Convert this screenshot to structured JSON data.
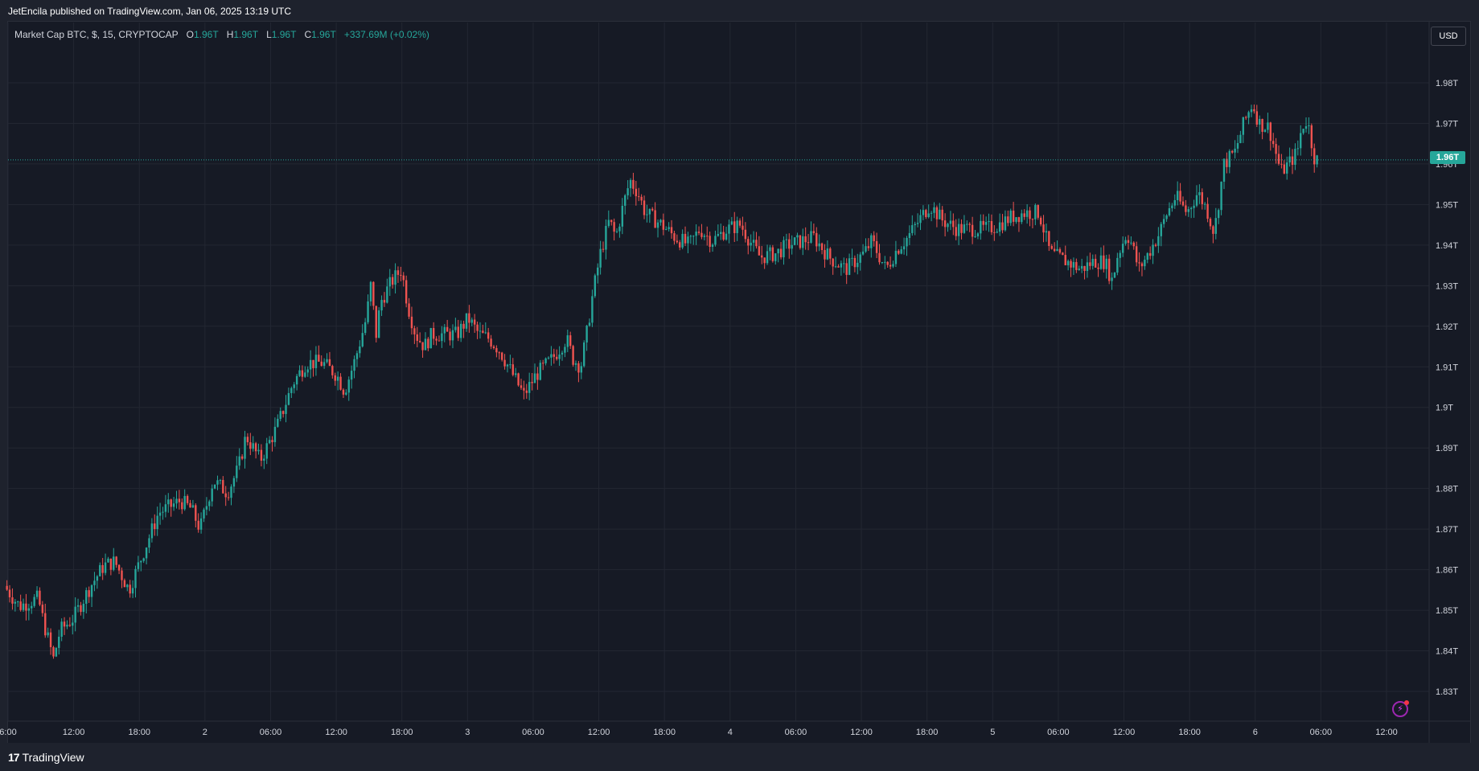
{
  "header": {
    "publish_text": "JetEncila published on TradingView.com, Jan 06, 2025 13:19 UTC"
  },
  "legend": {
    "symbol": "Market Cap BTC, $, 15, CRYPTOCAP",
    "o_label": "O",
    "o_value": "1.96T",
    "h_label": "H",
    "h_value": "1.96T",
    "l_label": "L",
    "l_value": "1.96T",
    "c_label": "C",
    "c_value": "1.96T",
    "change": "+337.69M (+0.02%)"
  },
  "currency_button": "USD",
  "last_price_label": "1.96T",
  "footer": {
    "logo_mark": "17",
    "logo_text": "TradingView"
  },
  "colors": {
    "up": "#26a69a",
    "down": "#ef5350",
    "background": "#161a25",
    "grid": "#232732",
    "accent": "#9c27b0"
  },
  "icons": [
    "tradingview-logo-icon",
    "lightning-icon"
  ],
  "chart_data": {
    "type": "candlestick",
    "timeframe": "15",
    "title": "",
    "y_axis": {
      "unit": "T",
      "range": [
        1.825,
        1.985
      ],
      "ticks": [
        {
          "value": 1.98,
          "label": "1.98T"
        },
        {
          "value": 1.97,
          "label": "1.97T"
        },
        {
          "value": 1.96,
          "label": "1.96T"
        },
        {
          "value": 1.95,
          "label": "1.95T"
        },
        {
          "value": 1.94,
          "label": "1.94T"
        },
        {
          "value": 1.93,
          "label": "1.93T"
        },
        {
          "value": 1.92,
          "label": "1.92T"
        },
        {
          "value": 1.91,
          "label": "1.91T"
        },
        {
          "value": 1.9,
          "label": "1.9T"
        },
        {
          "value": 1.89,
          "label": "1.89T"
        },
        {
          "value": 1.88,
          "label": "1.88T"
        },
        {
          "value": 1.87,
          "label": "1.87T"
        },
        {
          "value": 1.86,
          "label": "1.86T"
        },
        {
          "value": 1.85,
          "label": "1.85T"
        },
        {
          "value": 1.84,
          "label": "1.84T"
        },
        {
          "value": 1.83,
          "label": "1.83T"
        }
      ]
    },
    "x_axis": {
      "ticks": [
        {
          "label": "6:00",
          "hour": 6
        },
        {
          "label": "12:00",
          "hour": 12
        },
        {
          "label": "18:00",
          "hour": 18
        },
        {
          "label": "2",
          "hour": 24
        },
        {
          "label": "06:00",
          "hour": 30
        },
        {
          "label": "12:00",
          "hour": 36
        },
        {
          "label": "18:00",
          "hour": 42
        },
        {
          "label": "3",
          "hour": 48
        },
        {
          "label": "06:00",
          "hour": 54
        },
        {
          "label": "12:00",
          "hour": 60
        },
        {
          "label": "18:00",
          "hour": 66
        },
        {
          "label": "4",
          "hour": 72
        },
        {
          "label": "06:00",
          "hour": 78
        },
        {
          "label": "12:00",
          "hour": 84
        },
        {
          "label": "18:00",
          "hour": 90
        },
        {
          "label": "5",
          "hour": 96
        },
        {
          "label": "06:00",
          "hour": 102
        },
        {
          "label": "12:00",
          "hour": 108
        },
        {
          "label": "18:00",
          "hour": 114
        },
        {
          "label": "6",
          "hour": 120
        },
        {
          "label": "06:00",
          "hour": 126
        },
        {
          "label": "12:00",
          "hour": 132
        }
      ]
    },
    "last_price": 1.961,
    "grid": true,
    "price_path": [
      [
        5.9,
        1.856
      ],
      [
        7.3,
        1.851
      ],
      [
        9.0,
        1.853
      ],
      [
        9.5,
        1.847
      ],
      [
        9.9,
        1.843
      ],
      [
        10.4,
        1.838
      ],
      [
        11.0,
        1.845
      ],
      [
        12.2,
        1.848
      ],
      [
        13.8,
        1.856
      ],
      [
        15.0,
        1.861
      ],
      [
        16.0,
        1.862
      ],
      [
        17.3,
        1.855
      ],
      [
        18.3,
        1.862
      ],
      [
        20.0,
        1.874
      ],
      [
        22.0,
        1.877
      ],
      [
        23.0,
        1.875
      ],
      [
        23.8,
        1.87
      ],
      [
        25.0,
        1.882
      ],
      [
        26.3,
        1.879
      ],
      [
        27.3,
        1.885
      ],
      [
        28.0,
        1.893
      ],
      [
        29.3,
        1.887
      ],
      [
        30.8,
        1.895
      ],
      [
        32.3,
        1.906
      ],
      [
        33.5,
        1.911
      ],
      [
        35.0,
        1.911
      ],
      [
        36.3,
        1.908
      ],
      [
        37.0,
        1.904
      ],
      [
        38.0,
        1.912
      ],
      [
        39.0,
        1.922
      ],
      [
        39.4,
        1.93
      ],
      [
        39.9,
        1.918
      ],
      [
        40.3,
        1.926
      ],
      [
        41.3,
        1.931
      ],
      [
        42.2,
        1.934
      ],
      [
        42.8,
        1.925
      ],
      [
        43.5,
        1.918
      ],
      [
        44.3,
        1.915
      ],
      [
        45.0,
        1.918
      ],
      [
        46.3,
        1.918
      ],
      [
        47.3,
        1.918
      ],
      [
        48.3,
        1.922
      ],
      [
        49.3,
        1.918
      ],
      [
        50.2,
        1.917
      ],
      [
        51.2,
        1.914
      ],
      [
        52.0,
        1.91
      ],
      [
        52.8,
        1.906
      ],
      [
        53.4,
        1.903
      ],
      [
        54.5,
        1.908
      ],
      [
        56.0,
        1.912
      ],
      [
        57.3,
        1.917
      ],
      [
        57.9,
        1.912
      ],
      [
        58.6,
        1.91
      ],
      [
        59.2,
        1.919
      ],
      [
        59.7,
        1.928
      ],
      [
        60.4,
        1.938
      ],
      [
        61.2,
        1.946
      ],
      [
        61.8,
        1.942
      ],
      [
        62.5,
        1.95
      ],
      [
        63.1,
        1.956
      ],
      [
        63.8,
        1.953
      ],
      [
        64.5,
        1.948
      ],
      [
        66.0,
        1.945
      ],
      [
        67.2,
        1.942
      ],
      [
        68.5,
        1.94
      ],
      [
        69.5,
        1.944
      ],
      [
        70.6,
        1.941
      ],
      [
        72.0,
        1.944
      ],
      [
        73.2,
        1.945
      ],
      [
        74.3,
        1.94
      ],
      [
        75.0,
        1.937
      ],
      [
        76.5,
        1.938
      ],
      [
        77.5,
        1.94
      ],
      [
        78.8,
        1.941
      ],
      [
        79.9,
        1.942
      ],
      [
        81.3,
        1.937
      ],
      [
        82.8,
        1.934
      ],
      [
        84.5,
        1.938
      ],
      [
        85.2,
        1.941
      ],
      [
        86.5,
        1.934
      ],
      [
        87.5,
        1.939
      ],
      [
        88.5,
        1.942
      ],
      [
        89.5,
        1.946
      ],
      [
        90.5,
        1.95
      ],
      [
        91.7,
        1.946
      ],
      [
        93.0,
        1.944
      ],
      [
        94.3,
        1.944
      ],
      [
        95.7,
        1.944
      ],
      [
        96.8,
        1.945
      ],
      [
        98.0,
        1.947
      ],
      [
        99.2,
        1.948
      ],
      [
        100.5,
        1.948
      ],
      [
        101.5,
        1.938
      ],
      [
        103.0,
        1.936
      ],
      [
        104.3,
        1.934
      ],
      [
        105.5,
        1.936
      ],
      [
        106.5,
        1.936
      ],
      [
        107.2,
        1.931
      ],
      [
        107.6,
        1.937
      ],
      [
        108.5,
        1.943
      ],
      [
        109.0,
        1.94
      ],
      [
        109.6,
        1.934
      ],
      [
        110.5,
        1.938
      ],
      [
        111.5,
        1.943
      ],
      [
        112.2,
        1.948
      ],
      [
        113.0,
        1.952
      ],
      [
        114.0,
        1.948
      ],
      [
        115.0,
        1.953
      ],
      [
        115.8,
        1.949
      ],
      [
        116.5,
        1.943
      ],
      [
        117.4,
        1.96
      ],
      [
        118.4,
        1.963
      ],
      [
        119.2,
        1.97
      ],
      [
        120.0,
        1.975
      ],
      [
        120.6,
        1.97
      ],
      [
        121.5,
        1.969
      ],
      [
        122.6,
        1.958
      ],
      [
        123.3,
        1.96
      ],
      [
        124.1,
        1.963
      ],
      [
        124.5,
        1.969
      ],
      [
        125.0,
        1.971
      ],
      [
        125.7,
        1.961
      ]
    ]
  }
}
